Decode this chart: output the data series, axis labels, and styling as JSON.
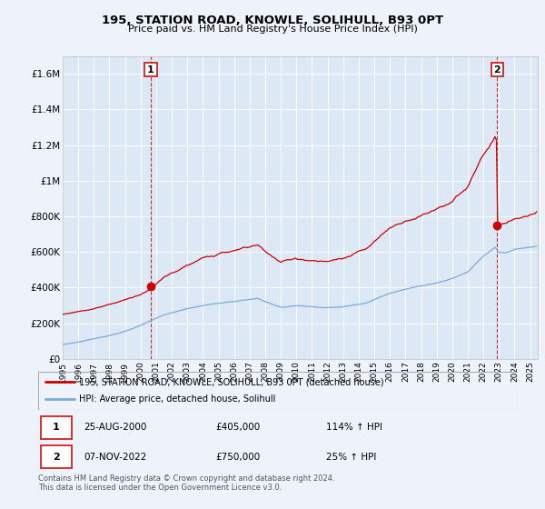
{
  "title": "195, STATION ROAD, KNOWLE, SOLIHULL, B93 0PT",
  "subtitle": "Price paid vs. HM Land Registry's House Price Index (HPI)",
  "ylim": [
    0,
    1700000
  ],
  "yticks": [
    0,
    200000,
    400000,
    600000,
    800000,
    1000000,
    1200000,
    1400000,
    1600000
  ],
  "ytick_labels": [
    "£0",
    "£200K",
    "£400K",
    "£600K",
    "£800K",
    "£1M",
    "£1.2M",
    "£1.4M",
    "£1.6M"
  ],
  "background_color": "#eef2fb",
  "plot_bg": "#dce8f5",
  "grid_color": "#ffffff",
  "red_color": "#cc0000",
  "blue_color": "#7aaadd",
  "legend_label_red": "195, STATION ROAD, KNOWLE, SOLIHULL, B93 0PT (detached house)",
  "legend_label_blue": "HPI: Average price, detached house, Solihull",
  "annotation1_date": "25-AUG-2000",
  "annotation1_price": "£405,000",
  "annotation1_hpi": "114% ↑ HPI",
  "annotation2_date": "07-NOV-2022",
  "annotation2_price": "£750,000",
  "annotation2_hpi": "25% ↑ HPI",
  "footer": "Contains HM Land Registry data © Crown copyright and database right 2024.\nThis data is licensed under the Open Government Licence v3.0.",
  "sale1_x": 2000.646,
  "sale1_y": 405000,
  "sale2_x": 2022.877,
  "sale2_y": 750000,
  "xmin": 1995,
  "xmax": 2025.5
}
